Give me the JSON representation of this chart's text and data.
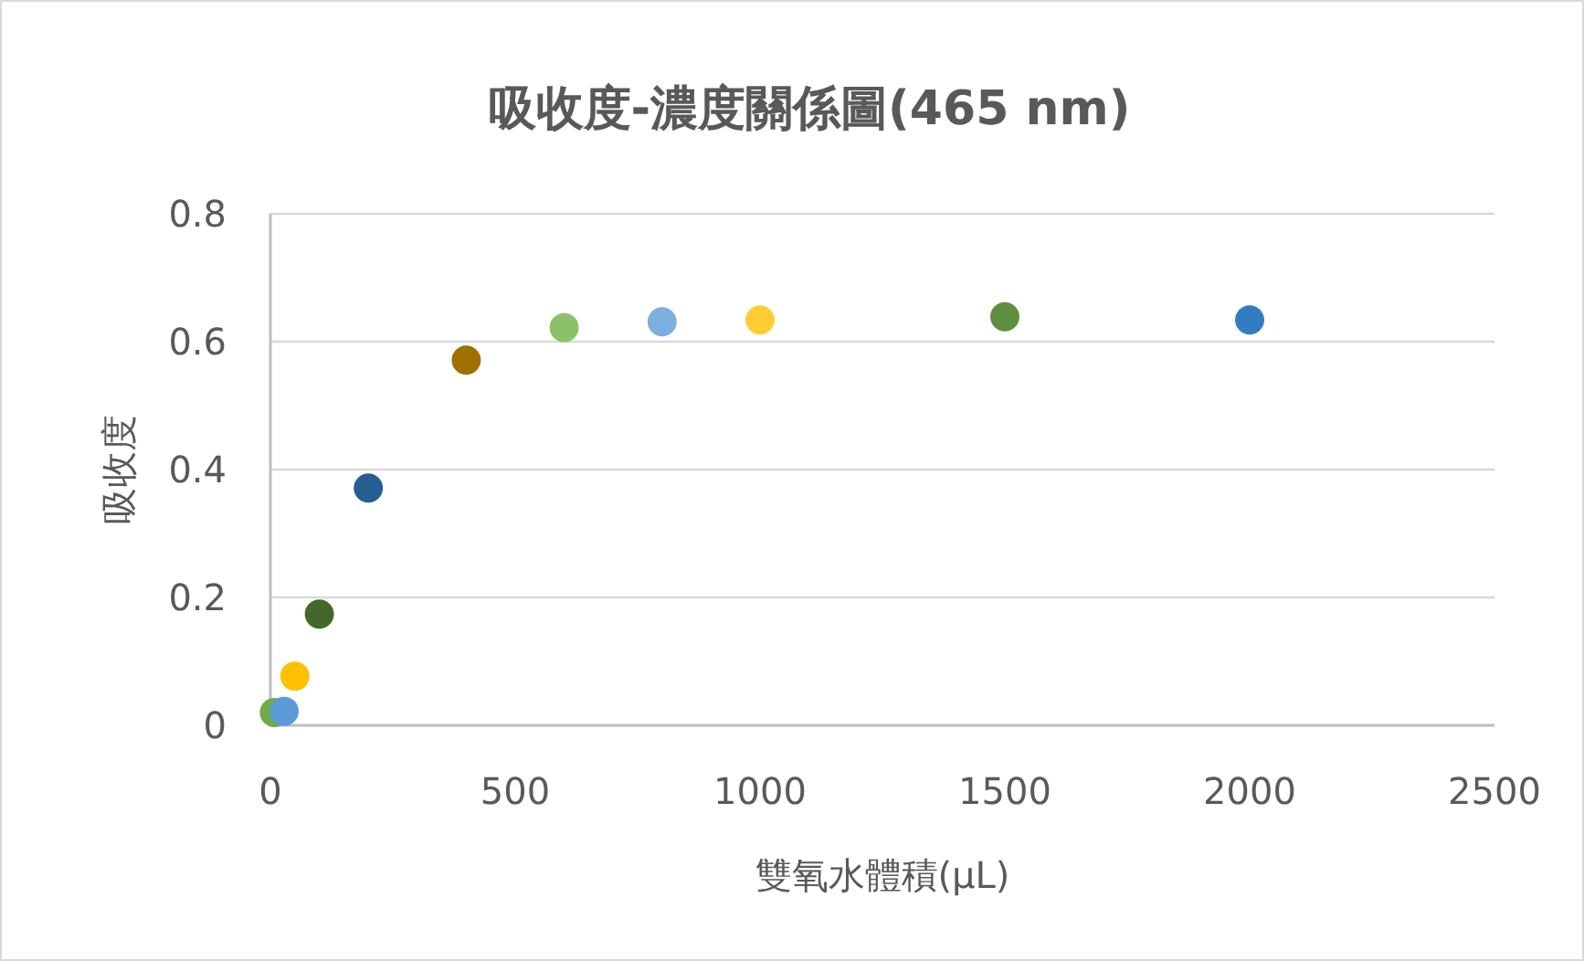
{
  "chart_data": {
    "type": "scatter",
    "title": "吸收度-濃度關係圖(465 nm)",
    "xlabel": "雙氧水體積(μL)",
    "ylabel": "吸收度",
    "x": [
      8,
      28,
      50,
      100,
      200,
      400,
      600,
      800,
      1000,
      1500,
      2000
    ],
    "values": [
      0.02,
      0.022,
      0.077,
      0.174,
      0.371,
      0.571,
      0.622,
      0.631,
      0.634,
      0.639,
      0.634
    ],
    "colors": [
      "#70ad47",
      "#5b9bd5",
      "#ffc000",
      "#43682b",
      "#255e91",
      "#9e7000",
      "#8cc168",
      "#7cafdd",
      "#ffcd33",
      "#5f8f3e",
      "#327dc2"
    ],
    "xlim": [
      0,
      2500
    ],
    "xticks": [
      0,
      500,
      1000,
      1500,
      2000,
      2500
    ],
    "ylim": [
      0,
      0.8
    ],
    "yticks": [
      0,
      0.2,
      0.4,
      0.6,
      0.8
    ],
    "grid": "y",
    "marker": "circle"
  }
}
